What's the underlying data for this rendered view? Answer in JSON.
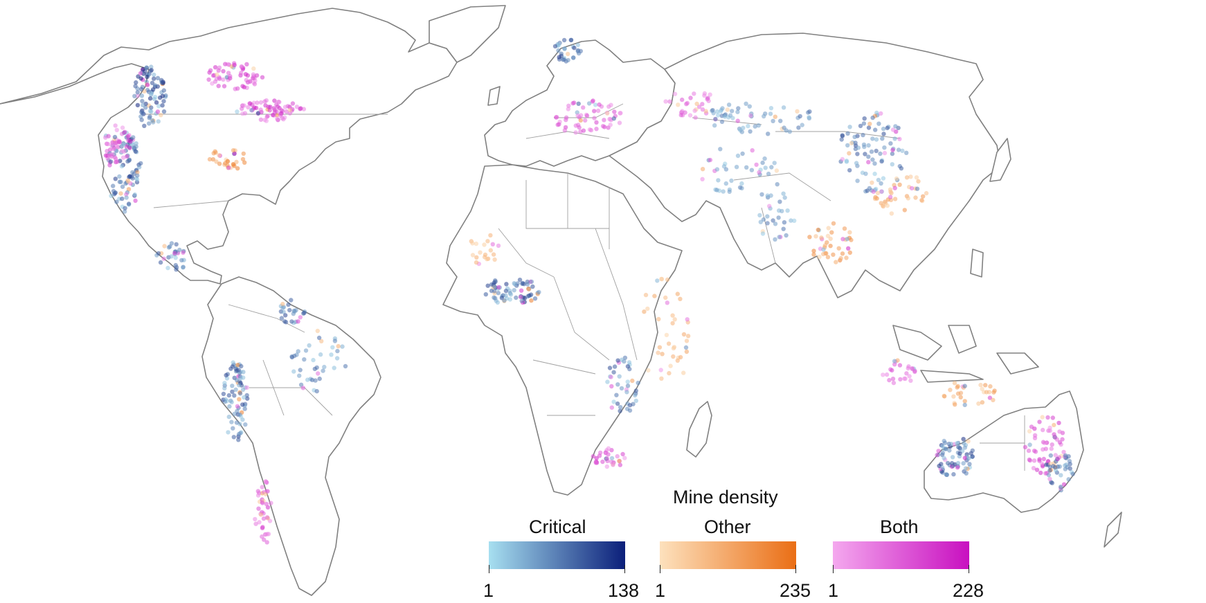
{
  "legend": {
    "title": "Mine density",
    "scales": [
      {
        "id": "critical",
        "label": "Critical",
        "min": "1",
        "max": "138",
        "color_low": "#a7dff0",
        "color_high": "#0b1f7a"
      },
      {
        "id": "other",
        "label": "Other",
        "min": "1",
        "max": "235",
        "color_low": "#fde1bd",
        "color_high": "#ea6e15"
      },
      {
        "id": "both",
        "label": "Both",
        "min": "1",
        "max": "228",
        "color_low": "#f4a8ee",
        "color_high": "#c810c0"
      }
    ]
  },
  "map_style": {
    "coastline_color": "#808080",
    "border_color": "#a0a0a0",
    "land_color": "#ffffff"
  }
}
